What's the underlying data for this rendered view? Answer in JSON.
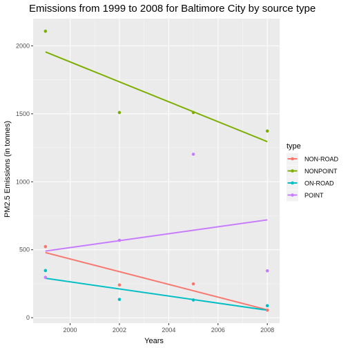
{
  "chart_data": {
    "type": "scatter",
    "title": "Emissions from 1999 to 2008 for Baltimore City by source type",
    "xlabel": "Years",
    "ylabel": "PM2.5 Emissions (in tonnes)",
    "xlim": [
      1998.5,
      2008.5
    ],
    "ylim": [
      -40,
      2200
    ],
    "x_ticks": [
      2000,
      2002,
      2004,
      2006,
      2008
    ],
    "y_ticks": [
      0,
      500,
      1000,
      1500,
      2000
    ],
    "grid": true,
    "legend": {
      "title": "type",
      "position": "right"
    },
    "series": [
      {
        "name": "NON-ROAD",
        "color": "#F8766D",
        "points": [
          [
            1999,
            522.9
          ],
          [
            2002,
            240.8
          ],
          [
            2005,
            248.9
          ],
          [
            2008,
            55.8
          ]
        ],
        "trend": [
          [
            1999,
            479
          ],
          [
            2008,
            58
          ]
        ]
      },
      {
        "name": "NONPOINT",
        "color": "#7CAE00",
        "points": [
          [
            1999,
            2107.6
          ],
          [
            2002,
            1509.5
          ],
          [
            2005,
            1509.5
          ],
          [
            2008,
            1373.2
          ]
        ],
        "trend": [
          [
            1999,
            1955
          ],
          [
            2008,
            1295
          ]
        ]
      },
      {
        "name": "ON-ROAD",
        "color": "#00BFC4",
        "points": [
          [
            1999,
            346.8
          ],
          [
            2002,
            134.3
          ],
          [
            2005,
            130.4
          ],
          [
            2008,
            88.3
          ]
        ],
        "trend": [
          [
            1999,
            290
          ],
          [
            2008,
            55
          ]
        ]
      },
      {
        "name": "POINT",
        "color": "#C77CFF",
        "points": [
          [
            1999,
            296.8
          ],
          [
            2002,
            569.3
          ],
          [
            2005,
            1202.5
          ],
          [
            2008,
            344.98
          ]
        ],
        "trend": [
          [
            1999,
            490
          ],
          [
            2008,
            720
          ]
        ]
      }
    ]
  }
}
